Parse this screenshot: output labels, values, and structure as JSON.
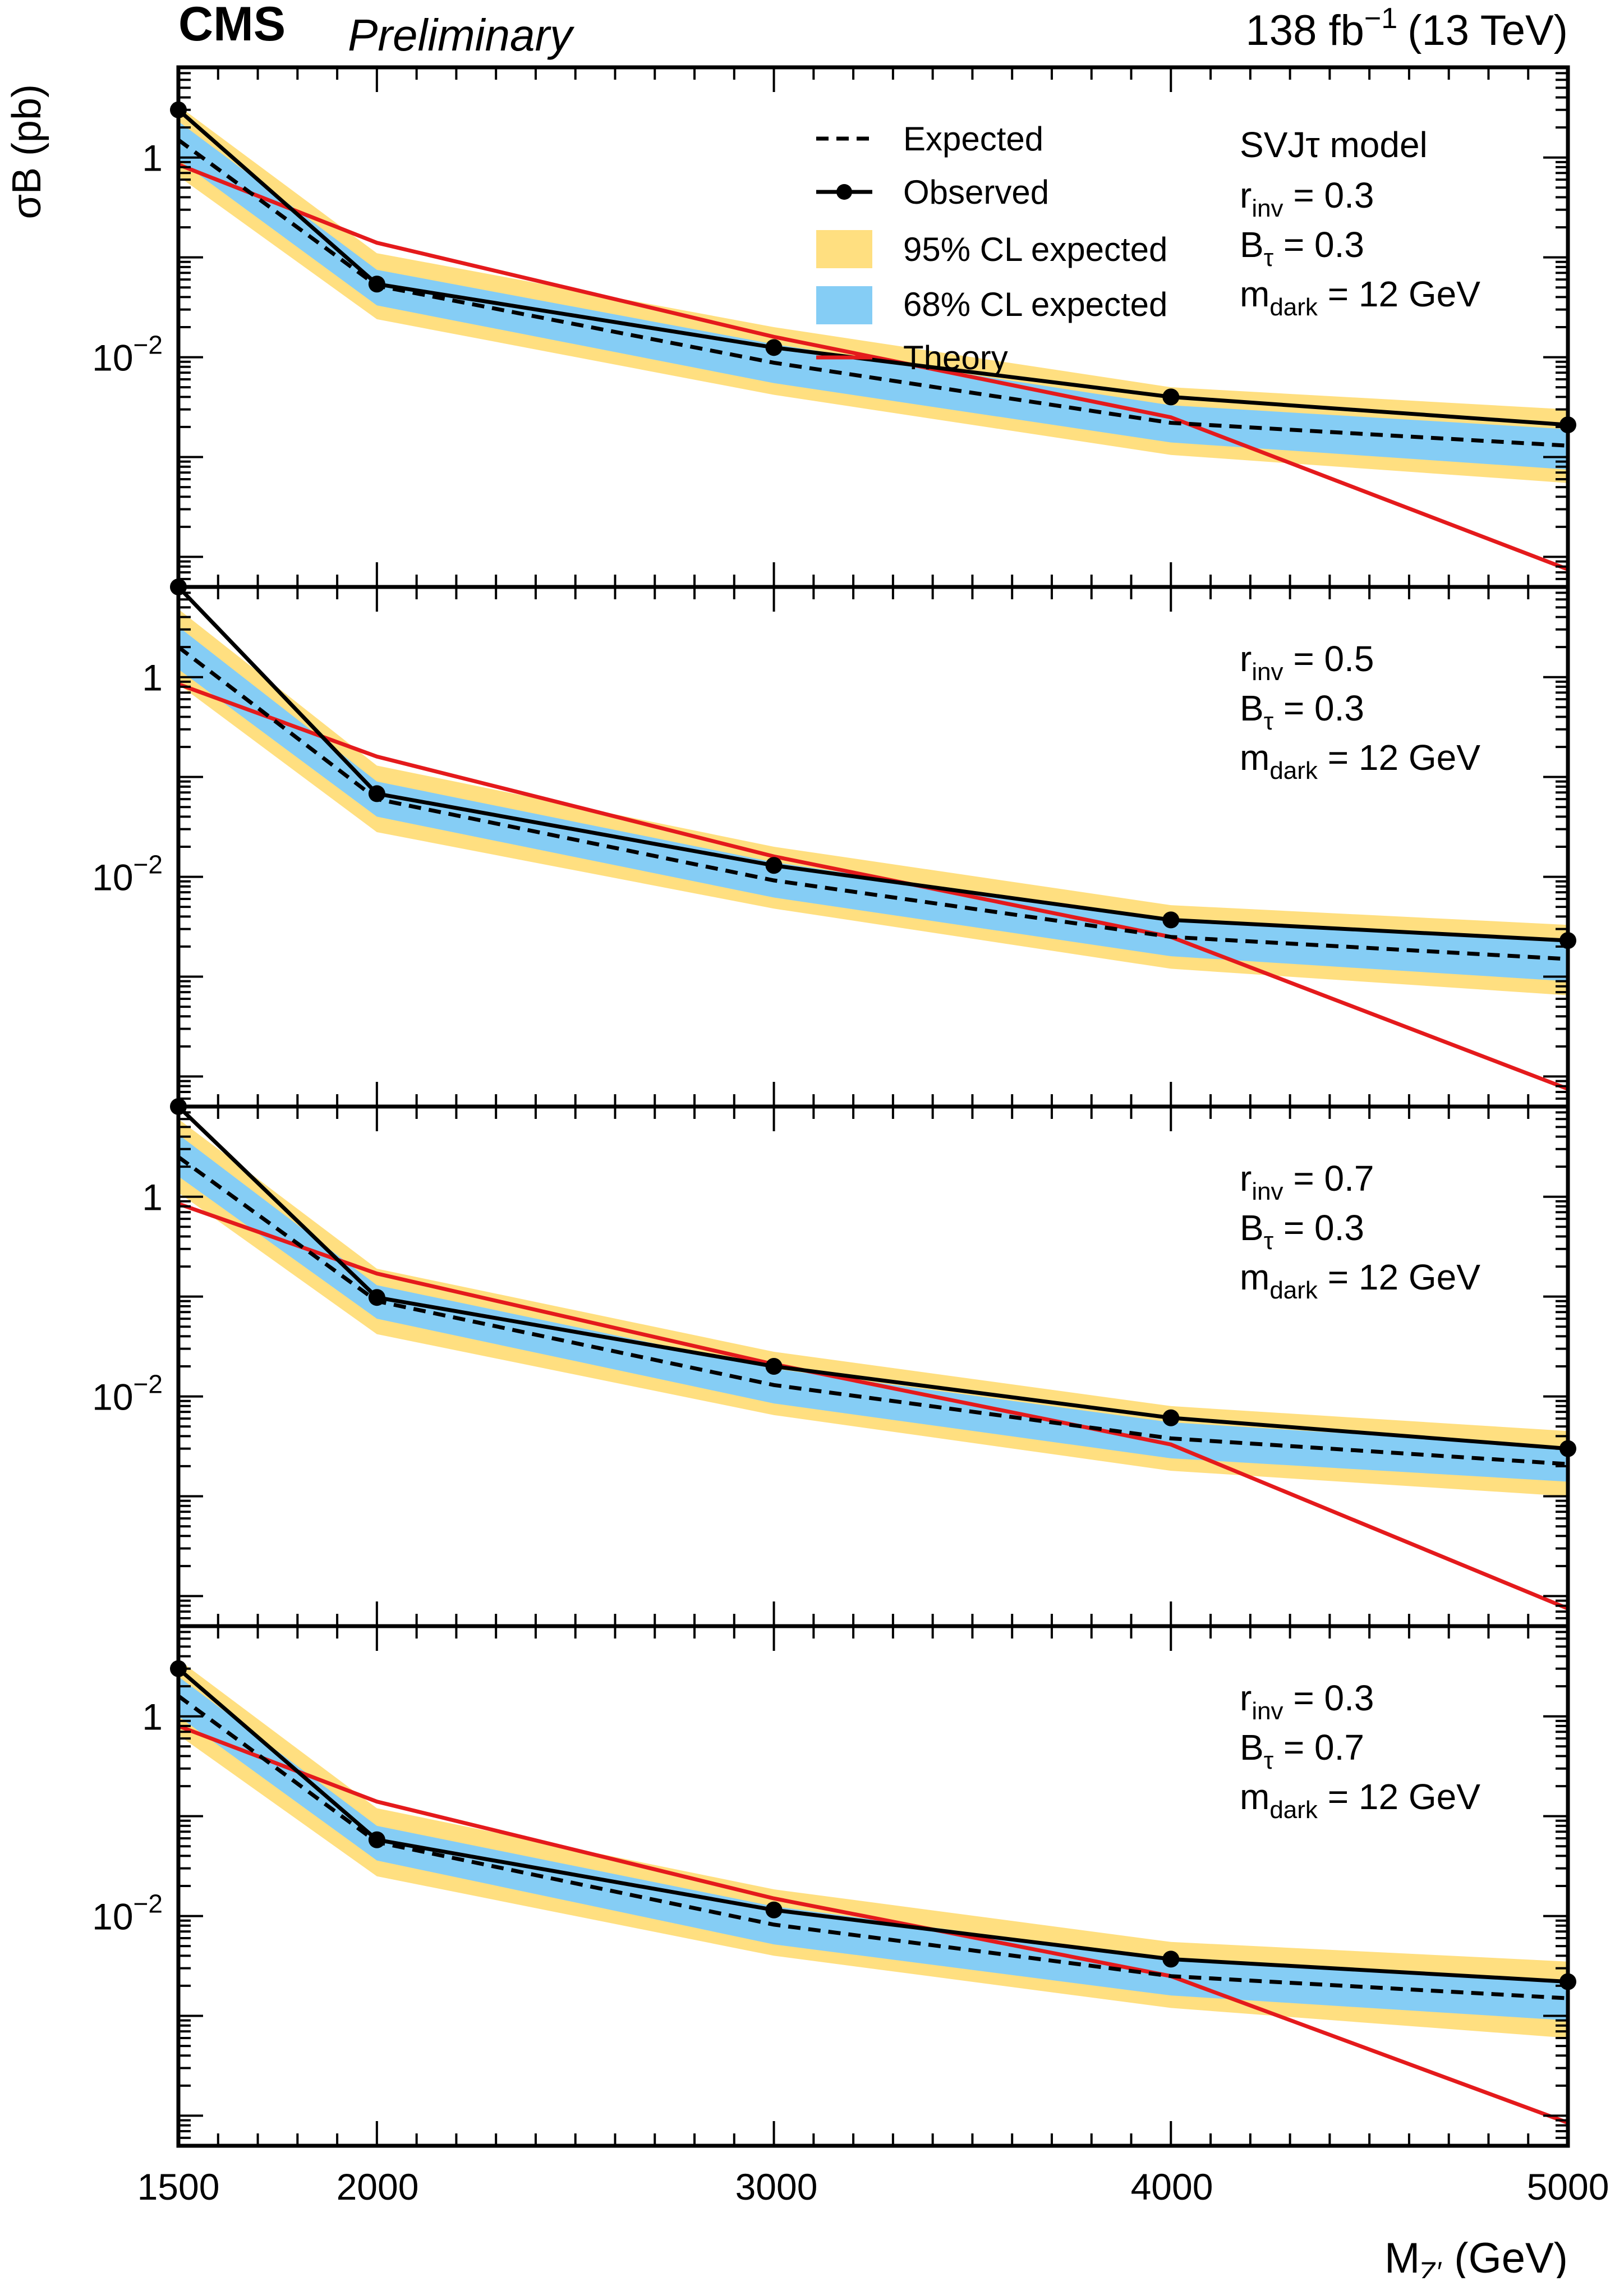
{
  "header": {
    "experiment": "CMS",
    "status": "Preliminary",
    "luminosity_prefix": "138 fb",
    "luminosity_exp": "−1",
    "energy": "(13 TeV)"
  },
  "legend": {
    "expected": "Expected",
    "observed": "Observed",
    "band95": "95% CL expected",
    "band68": "68% CL expected",
    "theory": "Theory"
  },
  "colors": {
    "band95": "#ffdf80",
    "band68": "#85cdf5",
    "theory": "#e41a1c",
    "observed": "#000000",
    "expected": "#000000"
  },
  "chart_data": {
    "type": "line",
    "xlabel": "M_Z′ (GeV)",
    "ylabel": "σB (pb)",
    "xlim": [
      1500,
      5000
    ],
    "log_y": true,
    "ylim": [
      5e-05,
      8
    ],
    "x_ticks": [
      "1500",
      "2000",
      "3000",
      "4000",
      "5000"
    ],
    "y_tick_labels": [
      "1",
      "10^-2"
    ],
    "legend_position": "top-center",
    "panels": [
      {
        "labels": {
          "model": "SVJτ model",
          "rinv": "r",
          "rinv_sub": "inv",
          "rinv_val": " = 0.3",
          "btau": "B",
          "btau_sub": "τ",
          "btau_val": " = 0.3",
          "mdark": "m",
          "mdark_sub": "dark",
          "mdark_val": " = 12 GeV"
        },
        "x": [
          1500,
          2000,
          3000,
          4000,
          5000
        ],
        "observed": [
          3.0,
          0.054,
          0.0125,
          0.004,
          0.0021
        ],
        "expected": [
          1.5,
          0.052,
          0.0088,
          0.0022,
          0.0013
        ],
        "band68_low": [
          0.95,
          0.033,
          0.0055,
          0.0014,
          0.00075
        ],
        "band68_high": [
          2.3,
          0.075,
          0.0135,
          0.0033,
          0.0019
        ],
        "band95_low": [
          0.65,
          0.024,
          0.0042,
          0.00105,
          0.00055
        ],
        "band95_high": [
          3.3,
          0.11,
          0.02,
          0.005,
          0.003
        ],
        "theory": [
          0.85,
          0.14,
          0.016,
          0.0025,
          7.5e-05
        ]
      },
      {
        "labels": {
          "model": "",
          "rinv": "r",
          "rinv_sub": "inv",
          "rinv_val": " = 0.5",
          "btau": "B",
          "btau_sub": "τ",
          "btau_val": " = 0.3",
          "mdark": "m",
          "mdark_sub": "dark",
          "mdark_val": " = 12 GeV"
        },
        "x": [
          1500,
          2000,
          3000,
          4000,
          5000
        ],
        "observed": [
          8.0,
          0.068,
          0.013,
          0.0037,
          0.0023
        ],
        "expected": [
          2.0,
          0.06,
          0.0092,
          0.0025,
          0.0015
        ],
        "band68_low": [
          1.2,
          0.04,
          0.0062,
          0.0016,
          0.0009
        ],
        "band68_high": [
          3.2,
          0.09,
          0.014,
          0.0036,
          0.0022
        ],
        "band95_low": [
          0.85,
          0.028,
          0.0048,
          0.0012,
          0.00065
        ],
        "band95_high": [
          4.8,
          0.13,
          0.02,
          0.0052,
          0.0033
        ],
        "theory": [
          0.85,
          0.16,
          0.016,
          0.0025,
          7.5e-05
        ]
      },
      {
        "labels": {
          "model": "",
          "rinv": "r",
          "rinv_sub": "inv",
          "rinv_val": " = 0.7",
          "btau": "B",
          "btau_sub": "τ",
          "btau_val": " = 0.3",
          "mdark": "m",
          "mdark_sub": "dark",
          "mdark_val": " = 12 GeV"
        },
        "x": [
          1500,
          2000,
          3000,
          4000,
          5000
        ],
        "observed": [
          8.0,
          0.098,
          0.02,
          0.0061,
          0.003
        ],
        "expected": [
          2.5,
          0.09,
          0.013,
          0.0038,
          0.0021
        ],
        "band68_low": [
          1.6,
          0.06,
          0.0085,
          0.0024,
          0.0014
        ],
        "band68_high": [
          4.2,
          0.13,
          0.019,
          0.0055,
          0.0031
        ],
        "band95_low": [
          1.1,
          0.042,
          0.0065,
          0.0018,
          0.001
        ],
        "band95_high": [
          6.0,
          0.19,
          0.028,
          0.008,
          0.0045
        ],
        "theory": [
          0.85,
          0.17,
          0.021,
          0.0033,
          7.5e-05
        ]
      },
      {
        "labels": {
          "model": "",
          "rinv": "r",
          "rinv_sub": "inv",
          "rinv_val": " = 0.3",
          "btau": "B",
          "btau_sub": "τ",
          "btau_val": " = 0.7",
          "mdark": "m",
          "mdark_sub": "dark",
          "mdark_val": " = 12 GeV"
        },
        "x": [
          1500,
          2000,
          3000,
          4000,
          5000
        ],
        "observed": [
          3.0,
          0.058,
          0.0115,
          0.0037,
          0.0022
        ],
        "expected": [
          1.6,
          0.055,
          0.0082,
          0.0025,
          0.0015
        ],
        "band68_low": [
          1.0,
          0.036,
          0.0052,
          0.0016,
          0.0009
        ],
        "band68_high": [
          2.5,
          0.08,
          0.0125,
          0.0037,
          0.0023
        ],
        "band95_low": [
          0.65,
          0.025,
          0.004,
          0.0012,
          0.0006
        ],
        "band95_high": [
          3.7,
          0.12,
          0.0185,
          0.0055,
          0.0035
        ],
        "theory": [
          0.8,
          0.14,
          0.015,
          0.0025,
          8.5e-05
        ]
      }
    ]
  }
}
